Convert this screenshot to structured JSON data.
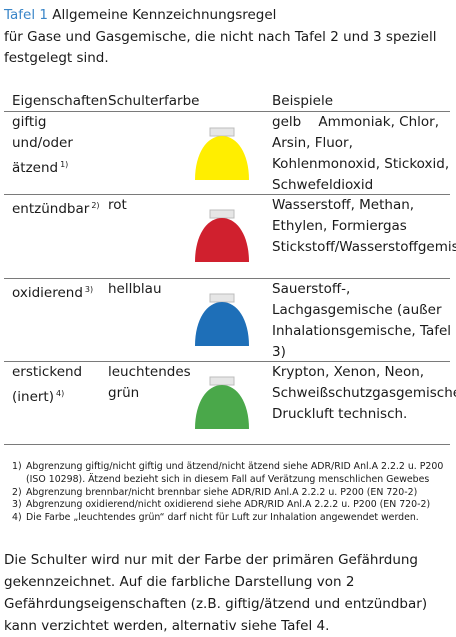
{
  "title": {
    "number": "Tafel 1",
    "name": "Allgemeine Kennzeichnungsregel"
  },
  "subtitle": "für Gase und Gasgemische, die nicht nach Tafel 2 und 3 speziell festgelegt sind.",
  "headers": {
    "property": "Eigenschaften",
    "color": "Schulterfarbe",
    "examples": "Beispiele"
  },
  "rows": [
    {
      "property": "giftig und/oder ätzend",
      "note": "1)",
      "color": "gelb",
      "examples": "Ammoniak, Chlor, Arsin, Fluor, Kohlenmonoxid, Stickoxid, Schwefeldioxid",
      "dome_color": "#ffee00"
    },
    {
      "property": "entzündbar",
      "note": "2)",
      "color": "rot",
      "examples": "Wasserstoff, Methan, Ethylen, Formiergas Stickstoff/Wasserstoffgemisch",
      "dome_color": "#d0202e"
    },
    {
      "property": "oxidierend",
      "note": "3)",
      "color": "hellblau",
      "examples": "Sauerstoff-, Lachgasgemische (außer Inhalationsgemische, Tafel 3)",
      "dome_color": "#1e6fb8"
    },
    {
      "property": "erstickend (inert)",
      "note": "4)",
      "color": "leuchtendes grün",
      "examples": "Krypton, Xenon, Neon, Schweißschutzgasgemische, Druckluft technisch.",
      "dome_color": "#4aa84a"
    }
  ],
  "footnotes": [
    {
      "n": "1)",
      "text": "Abgrenzung giftig/nicht giftig und ätzend/nicht ätzend siehe ADR/RID Anl.A 2.2.2 u. P200 (ISO 10298). Ätzend bezieht sich in diesem Fall auf Verätzung menschlichen Gewebes"
    },
    {
      "n": "2)",
      "text": "Abgrenzung brennbar/nicht brennbar siehe ADR/RID Anl.A 2.2.2 u. P200 (EN 720-2)"
    },
    {
      "n": "3)",
      "text": "Abgrenzung oxidierend/nicht oxidierend siehe ADR/RID Anl.A 2.2.2 u. P200 (EN 720-2)"
    },
    {
      "n": "4)",
      "text": "Die Farbe „leuchtendes grün“ darf nicht für Luft zur Inhalation angewendet werden."
    }
  ],
  "footer": "Die Schulter wird nur mit der Farbe der primären Gefährdung gekennzeichnet. Auf die farbliche Darstellung von 2 Gefährdungseigenschaften (z.B. giftig/ätzend und entzündbar) kann verzichtet werden, alternativ siehe Tafel 4."
}
